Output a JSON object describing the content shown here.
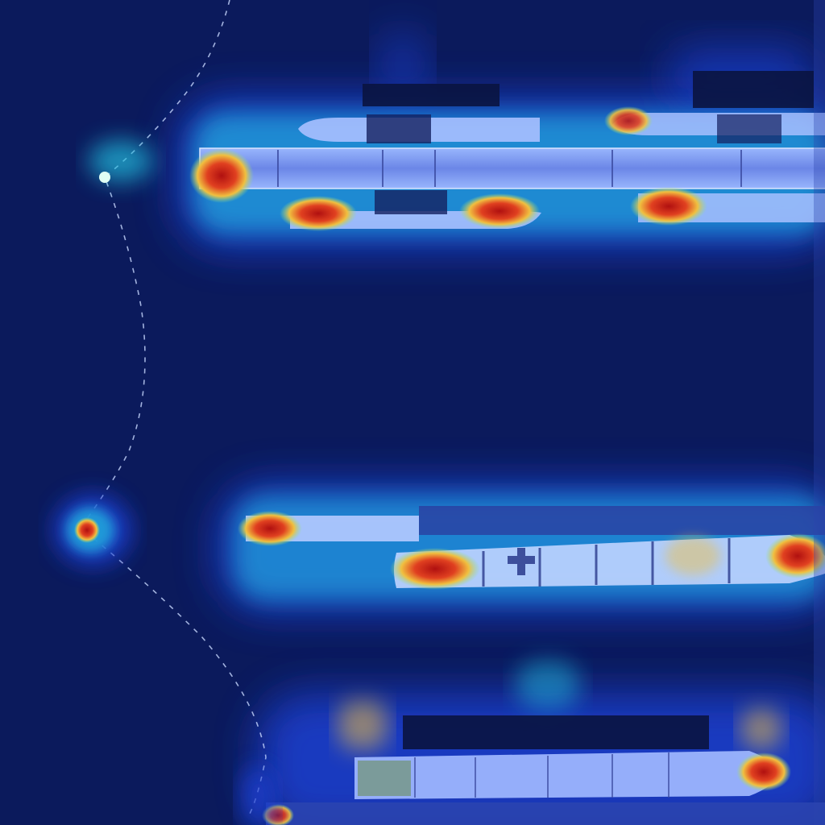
{
  "image": {
    "kind": "aerial-harbor-heatmap-overlay",
    "colormap": [
      "#0b1a5c",
      "#1f3fd1",
      "#20c0e0",
      "#8fe08a",
      "#f0c040",
      "#e04020",
      "#b01010"
    ],
    "background_color": "#0b1a5c"
  },
  "objects": [
    {
      "label": "pier",
      "count": 2
    },
    {
      "label": "ship",
      "count": 9
    },
    {
      "label": "boom-line",
      "count": 1
    }
  ]
}
